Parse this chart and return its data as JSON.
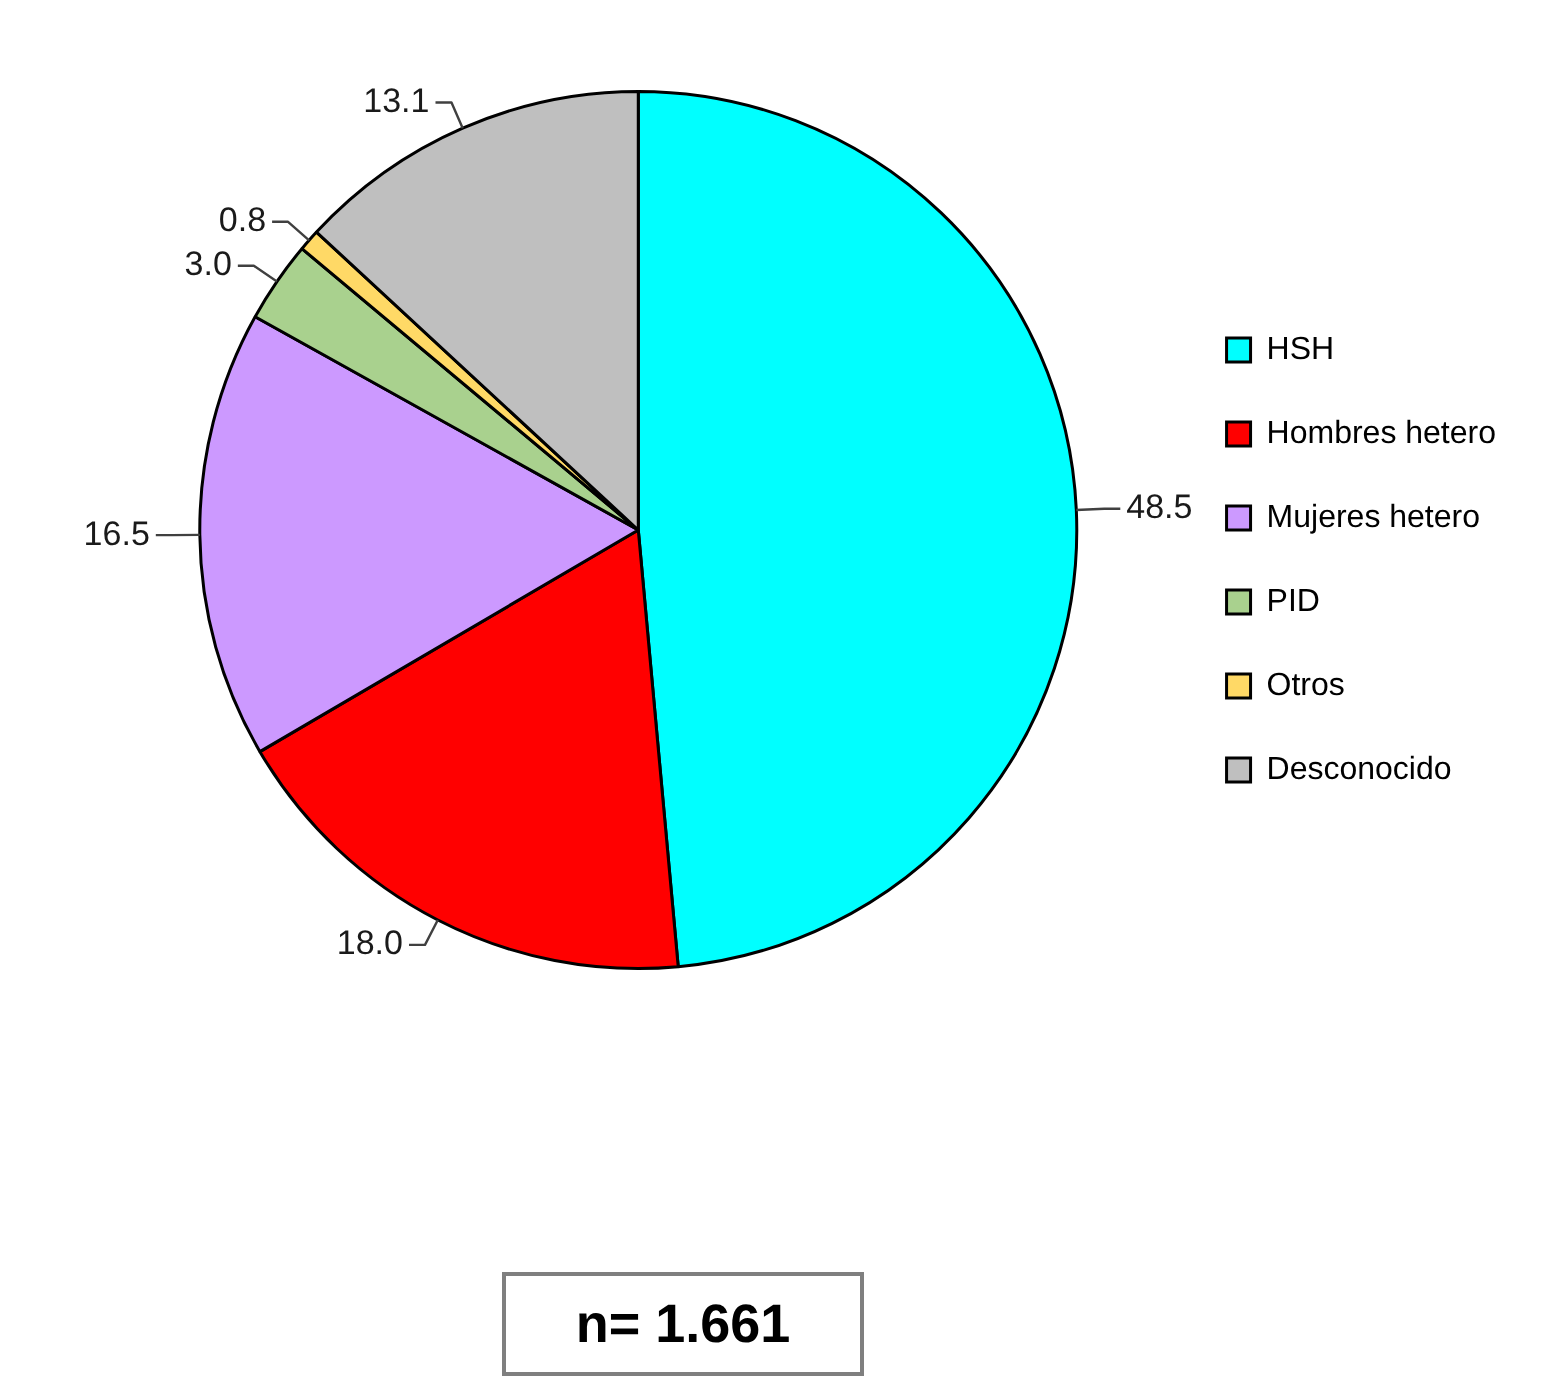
{
  "chart_data": {
    "type": "pie",
    "categories": [
      "HSH",
      "Hombres hetero",
      "Mujeres hetero",
      "PID",
      "Otros",
      "Desconocido"
    ],
    "values": [
      48.5,
      18.0,
      16.5,
      3.0,
      0.8,
      13.1
    ],
    "value_labels": [
      "48.5",
      "18.0",
      "16.5",
      "3.0",
      "0.8",
      "13.1"
    ],
    "colors": [
      "#00ffff",
      "#ff0000",
      "#cc99ff",
      "#a9d18e",
      "#ffd966",
      "#bfbfbf"
    ],
    "legend": "right",
    "annotations": [
      "n= 1.661"
    ]
  }
}
